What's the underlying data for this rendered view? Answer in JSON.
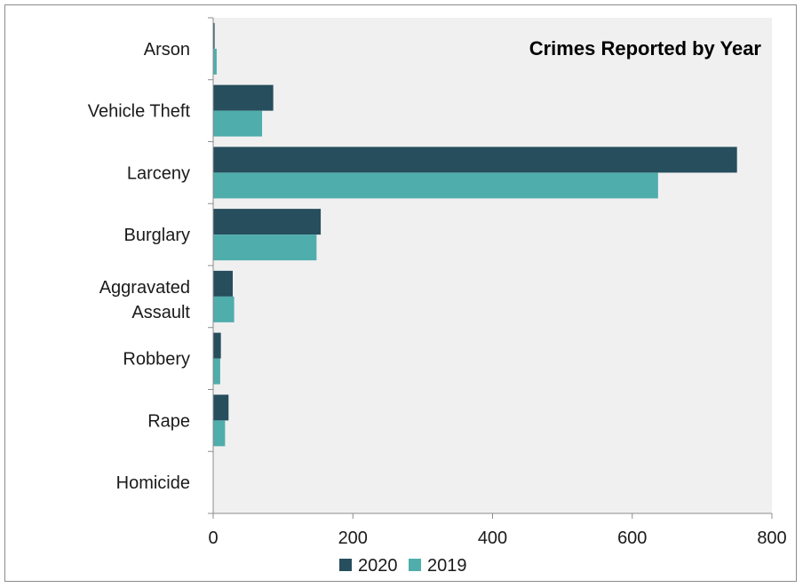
{
  "chart_data": {
    "type": "bar",
    "orientation": "horizontal",
    "title": "Crimes Reported by Year",
    "categories": [
      "Arson",
      "Vehicle Theft",
      "Larceny",
      "Burglary",
      "Aggravated Assault",
      "Robbery",
      "Rape",
      "Homicide"
    ],
    "series": [
      {
        "name": "2020",
        "color": "#264e5d",
        "values": [
          2,
          86,
          750,
          154,
          28,
          11,
          22,
          0
        ]
      },
      {
        "name": "2019",
        "color": "#4fadac",
        "values": [
          5,
          70,
          637,
          148,
          30,
          10,
          17,
          0
        ]
      }
    ],
    "xlim": [
      0,
      800
    ],
    "xticks": [
      "0",
      "200",
      "400",
      "600",
      "800"
    ],
    "legend_position": "bottom",
    "plot_background": "#f0f0f0",
    "grid": false
  }
}
